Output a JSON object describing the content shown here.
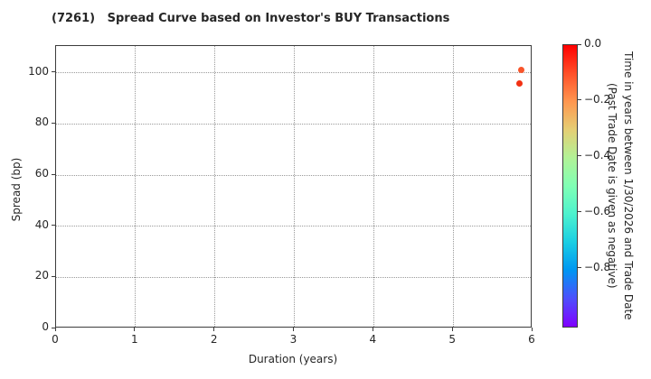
{
  "title": "(7261)   Spread Curve based on Investor's BUY Transactions",
  "chart_data": {
    "type": "scatter",
    "title": "(7261)   Spread Curve based on Investor's BUY Transactions",
    "xlabel": "Duration (years)",
    "ylabel": "Spread (bp)",
    "xlim": [
      0,
      6
    ],
    "ylim": [
      0,
      110.5
    ],
    "x_ticks": [
      0,
      1,
      2,
      3,
      4,
      5,
      6
    ],
    "y_ticks": [
      0,
      20,
      40,
      60,
      80,
      100
    ],
    "grid": true,
    "grid_style": "dotted",
    "points": [
      {
        "x": 5.86,
        "y": 101,
        "time_years": -0.1,
        "color": "#f8552b"
      },
      {
        "x": 5.84,
        "y": 96,
        "time_years": -0.05,
        "color": "#f23113"
      }
    ],
    "colorbar": {
      "colormap": "rainbow",
      "vmax": 0.0,
      "vmin": -1.013,
      "tick_values": [
        0.0,
        -0.2,
        -0.4,
        -0.6,
        -0.8
      ],
      "tick_labels": [
        "0.0",
        "−0.2",
        "−0.4",
        "−0.6",
        "−0.8"
      ],
      "label_line1": "Time in years between 1/30/2026 and Trade Date",
      "label_line2": "(Past Trade Date is given as negative)"
    }
  }
}
